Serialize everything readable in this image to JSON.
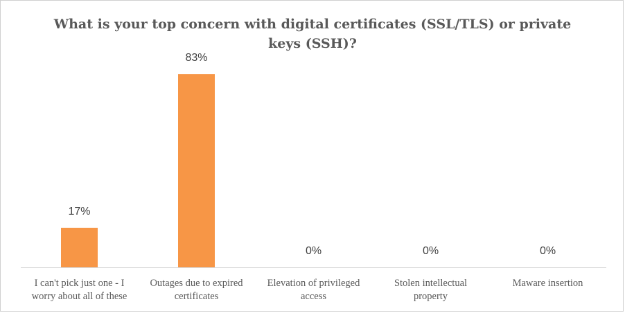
{
  "chart_data": {
    "type": "bar",
    "title": "What is your top concern with digital certificates (SSL/TLS) or private keys (SSH)?",
    "categories": [
      [
        "I can't pick just one - I",
        "worry about all of these"
      ],
      [
        "Outages due to expired",
        "certificates"
      ],
      [
        "Elevation of privileged",
        "access"
      ],
      [
        "Stolen intellectual",
        "property"
      ],
      [
        "Maware insertion"
      ]
    ],
    "values": [
      17,
      83,
      0,
      0,
      0
    ],
    "data_labels": [
      "17%",
      "83%",
      "0%",
      "0%",
      "0%"
    ],
    "unit": "%",
    "ylim": [
      0,
      100
    ],
    "grid": false,
    "legend": "none",
    "bar_color": "#f79646",
    "axis_color": "#d9d9d9"
  }
}
